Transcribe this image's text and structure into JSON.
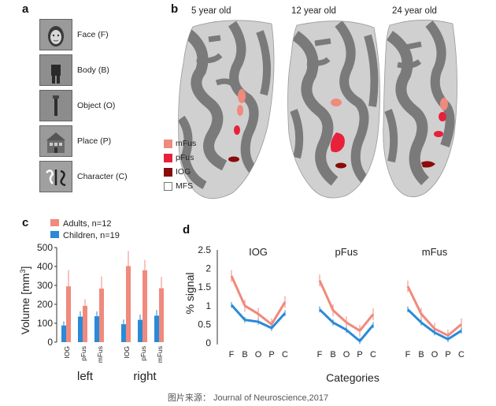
{
  "panels": {
    "a": "a",
    "b": "b",
    "c": "c",
    "d": "d"
  },
  "stimuli": [
    {
      "label": "Face (F)"
    },
    {
      "label": "Body (B)"
    },
    {
      "label": "Object (O)"
    },
    {
      "label": "Place (P)"
    },
    {
      "label": "Character (C)"
    }
  ],
  "brains": {
    "titles": [
      "5 year old",
      "12 year old",
      "24 year old"
    ],
    "legend": [
      {
        "label": "mFus",
        "color": "#f08a7c"
      },
      {
        "label": "pFus",
        "color": "#e8213b"
      },
      {
        "label": "IOG",
        "color": "#8b0a0a"
      },
      {
        "label": "MFS",
        "color": "#ffffff"
      }
    ],
    "colors": {
      "cortex_light": "#d4d4d4",
      "cortex_dark": "#7a7a7a"
    }
  },
  "chart_data": [
    {
      "type": "bar",
      "panel": "c",
      "ylabel": "Volume [mm³]",
      "ylabel_parts": [
        "Volume [mm",
        "3",
        "]"
      ],
      "ylim": [
        0,
        500
      ],
      "yticks": [
        "0",
        "100",
        "200",
        "300",
        "400",
        "500"
      ],
      "groups": [
        "left",
        "right"
      ],
      "categories": [
        "IOG",
        "pFus",
        "mFus"
      ],
      "series": [
        {
          "name": "Adults, n=12",
          "color": "#f08a7c",
          "values": [
            [
              295,
              192,
              283
            ],
            [
              402,
              380,
              285
            ]
          ],
          "errors": [
            [
              85,
              35,
              65
            ],
            [
              80,
              55,
              60
            ]
          ]
        },
        {
          "name": "Children, n=19",
          "color": "#2a8ad8",
          "values": [
            [
              88,
              135,
              137
            ],
            [
              95,
              118,
              140
            ]
          ],
          "errors": [
            [
              22,
              28,
              25
            ],
            [
              25,
              28,
              30
            ]
          ]
        }
      ],
      "legend_position": "top"
    },
    {
      "type": "line",
      "panel": "d",
      "ylabel": "% signal",
      "xlabel": "Categories",
      "ylim": [
        0,
        2.5
      ],
      "yticks": [
        "0",
        "0.5",
        "1",
        "1.5",
        "2",
        "2.5"
      ],
      "x": [
        "F",
        "B",
        "O",
        "P",
        "C"
      ],
      "subplots": [
        {
          "title": "IOG",
          "series": [
            {
              "group": "adults",
              "color": "#f08a7c",
              "values": [
                1.8,
                1.0,
                0.78,
                0.5,
                1.1
              ]
            },
            {
              "group": "children",
              "color": "#2a8ad8",
              "values": [
                1.02,
                0.62,
                0.57,
                0.4,
                0.8
              ]
            }
          ]
        },
        {
          "title": "pFus",
          "series": [
            {
              "group": "adults",
              "color": "#f08a7c",
              "values": [
                1.68,
                0.88,
                0.55,
                0.33,
                0.77
              ]
            },
            {
              "group": "children",
              "color": "#2a8ad8",
              "values": [
                0.9,
                0.55,
                0.35,
                0.05,
                0.48
              ]
            }
          ]
        },
        {
          "title": "mFus",
          "series": [
            {
              "group": "adults",
              "color": "#f08a7c",
              "values": [
                1.52,
                0.78,
                0.38,
                0.2,
                0.5
              ]
            },
            {
              "group": "children",
              "color": "#2a8ad8",
              "values": [
                0.9,
                0.55,
                0.28,
                0.1,
                0.33
              ]
            }
          ]
        }
      ]
    }
  ],
  "caption": "图片来源： Journal of Neuroscience,2017"
}
